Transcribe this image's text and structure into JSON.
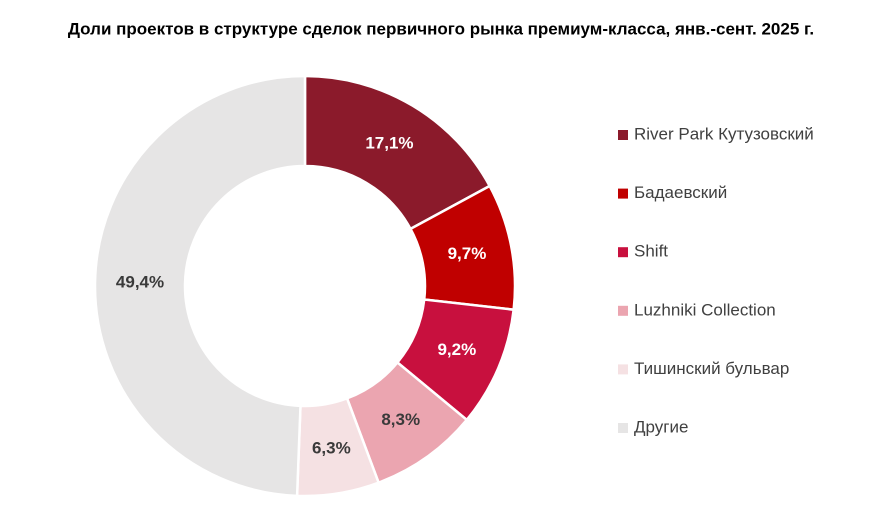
{
  "chart_data": {
    "type": "donut",
    "title": "Доли проектов в структуре сделок первичного рынка премиум-класса, янв.-сент. 2025 г.",
    "categories": [
      "River Park Кутузовский",
      "Бадаевский",
      "Shift",
      "Luzhniki Collection",
      "Тишинский бульвар",
      "Другие"
    ],
    "values": [
      17.1,
      9.7,
      9.2,
      8.3,
      6.3,
      49.4
    ],
    "value_labels": [
      "17,1%",
      "9,7%",
      "9,2%",
      "8,3%",
      "6,3%",
      "49,4%"
    ],
    "colors": [
      "#8b1a2b",
      "#c00000",
      "#c8103e",
      "#eba5b0",
      "#f5e1e3",
      "#e6e5e5"
    ],
    "legend": "right"
  }
}
